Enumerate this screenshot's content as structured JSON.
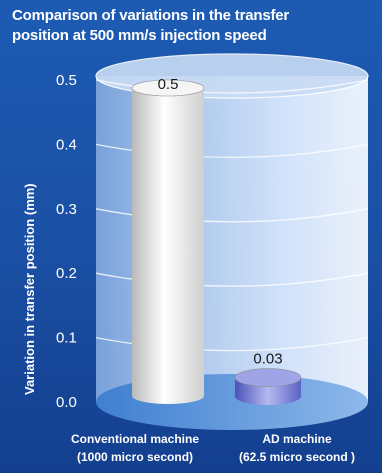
{
  "chart_data": {
    "type": "bar",
    "title": "Comparison of variations in the transfer position at 500 mm/s injection speed",
    "title_line1": "Comparison of variations in the transfer",
    "title_line2": "position at 500 mm/s injection speed",
    "ylabel": "Variation in transfer position (mm)",
    "xlabel": "",
    "ylim": [
      0,
      0.5
    ],
    "yticks": [
      "0.0",
      "0.1",
      "0.2",
      "0.3",
      "0.4",
      "0.5"
    ],
    "categories": [
      {
        "line1": "Conventional machine",
        "line2": "(1000 micro second)"
      },
      {
        "line1": "AD machine",
        "line2": "(62.5 micro second )"
      }
    ],
    "values": [
      0.5,
      0.03
    ],
    "value_labels": [
      "0.5",
      "0.03"
    ],
    "grid": true,
    "colors": {
      "background": "#1a4fa3",
      "bar1": "#e8e8e8",
      "bar2": "#7f86d6",
      "gridline": "#e6f0ff"
    }
  }
}
